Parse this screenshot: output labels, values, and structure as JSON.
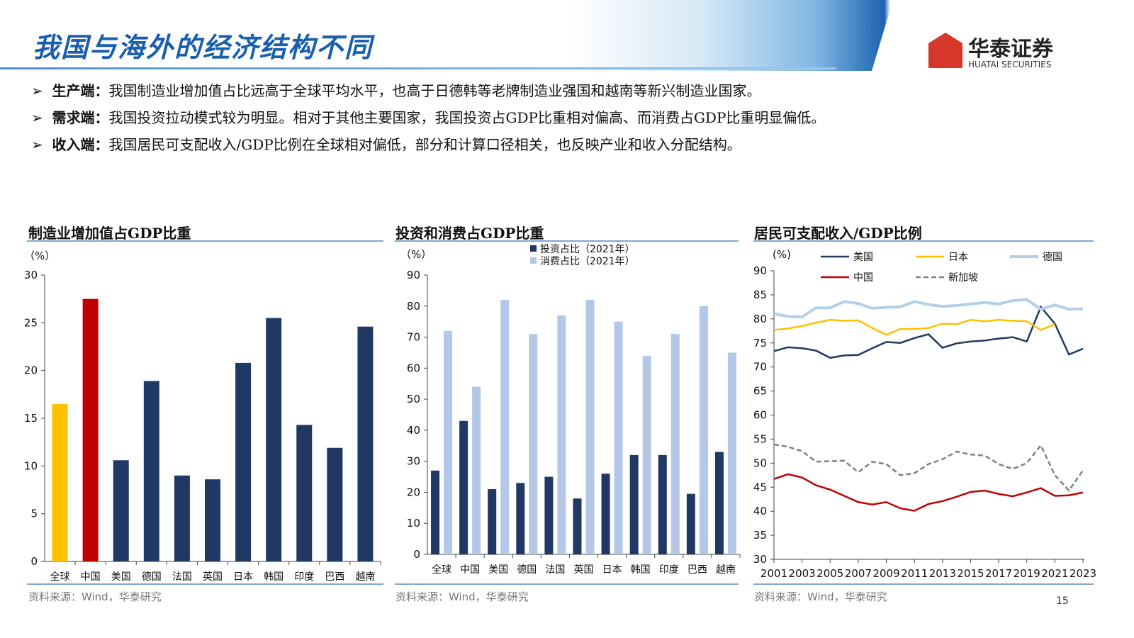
{
  "header": {
    "title": "我国与海外的经济结构不同",
    "logo_cn": "华泰证券",
    "logo_en": "HUATAI SECURITIES"
  },
  "bullets": [
    {
      "label": "生产端：",
      "text": "我国制造业增加值占比远高于全球平均水平，也高于日德韩等老牌制造业强国和越南等新兴制造业国家。"
    },
    {
      "label": "需求端：",
      "text": "我国投资拉动模式较为明显。相对于其他主要国家，我国投资占GDP比重相对偏高、而消费占GDP比重明显偏低。"
    },
    {
      "label": "收入端：",
      "text": "我国居民可支配收入/GDP比例在全球相对偏低，部分和计算口径相关，也反映产业和收入分配结构。"
    }
  ],
  "page_number": "15",
  "colors": {
    "navy": "#1f3864",
    "red": "#c00000",
    "yellow": "#ffc000",
    "lightblue": "#b4c7e7",
    "gray": "#808080"
  },
  "chart_data": [
    {
      "type": "bar",
      "title": "制造业增加值占GDP比重",
      "ylabel": "（%）",
      "ylim": [
        0,
        30
      ],
      "yticks": [
        0,
        5,
        10,
        15,
        20,
        25,
        30
      ],
      "categories": [
        "全球",
        "中国",
        "美国",
        "德国",
        "法国",
        "英国",
        "日本",
        "韩国",
        "印度",
        "巴西",
        "越南"
      ],
      "values": [
        16.5,
        27.5,
        10.6,
        18.9,
        9.0,
        8.6,
        20.8,
        25.5,
        14.3,
        11.9,
        24.6
      ],
      "bar_colors": [
        "#ffc000",
        "#c00000",
        "#1f3864",
        "#1f3864",
        "#1f3864",
        "#1f3864",
        "#1f3864",
        "#1f3864",
        "#1f3864",
        "#1f3864",
        "#1f3864"
      ],
      "source": "资料来源：Wind，华泰研究"
    },
    {
      "type": "bar",
      "title": "投资和消费占GDP比重",
      "ylabel": "（%）",
      "ylim": [
        0,
        90
      ],
      "yticks": [
        0,
        10,
        20,
        30,
        40,
        50,
        60,
        70,
        80,
        90
      ],
      "categories": [
        "全球",
        "中国",
        "美国",
        "德国",
        "法国",
        "英国",
        "日本",
        "韩国",
        "印度",
        "巴西",
        "越南"
      ],
      "series": [
        {
          "name": "投资占比（2021年）",
          "color": "#1f3864",
          "values": [
            27,
            43,
            21,
            23,
            25,
            18,
            26,
            32,
            32,
            19.5,
            33
          ]
        },
        {
          "name": "消费占比（2021年）",
          "color": "#b4c7e7",
          "values": [
            72,
            54,
            82,
            71,
            77,
            82,
            75,
            64,
            71,
            80,
            65
          ]
        }
      ],
      "source": "资料来源：Wind，华泰研究"
    },
    {
      "type": "line",
      "title": "居民可支配收入/GDP比例",
      "ylabel": "(%)",
      "ylim": [
        30,
        90
      ],
      "yticks": [
        30,
        35,
        40,
        45,
        50,
        55,
        60,
        65,
        70,
        75,
        80,
        85,
        90
      ],
      "x": [
        2001,
        2002,
        2003,
        2004,
        2005,
        2006,
        2007,
        2008,
        2009,
        2010,
        2011,
        2012,
        2013,
        2014,
        2015,
        2016,
        2017,
        2018,
        2019,
        2020,
        2021,
        2022,
        2023
      ],
      "xticks": [
        "2001",
        "2003",
        "2005",
        "2007",
        "2009",
        "2011",
        "2013",
        "2015",
        "2017",
        "2019",
        "2021",
        "2023"
      ],
      "series": [
        {
          "name": "美国",
          "color": "#1f3864",
          "dash": false,
          "values": [
            73.3,
            74.1,
            73.9,
            73.4,
            71.9,
            72.4,
            72.5,
            73.9,
            75.2,
            75.0,
            76.0,
            76.8,
            74.0,
            74.9,
            75.3,
            75.5,
            75.9,
            76.2,
            75.3,
            82.5,
            79.0,
            72.6,
            73.8
          ]
        },
        {
          "name": "日本",
          "color": "#ffc000",
          "dash": false,
          "values": [
            77.7,
            78.0,
            78.5,
            79.2,
            79.8,
            79.6,
            79.7,
            78.1,
            76.7,
            77.9,
            77.9,
            78.1,
            79.0,
            78.9,
            79.8,
            79.5,
            79.8,
            79.6,
            79.5,
            77.7,
            78.9,
            null,
            null
          ]
        },
        {
          "name": "德国",
          "color": "#b4cfea",
          "dash": false,
          "values": [
            81.1,
            80.5,
            80.4,
            82.3,
            82.3,
            83.6,
            83.2,
            82.2,
            82.4,
            82.5,
            83.6,
            83.0,
            82.6,
            82.8,
            83.1,
            83.4,
            83.1,
            83.8,
            84.0,
            82.0,
            82.9,
            82.0,
            82.1
          ]
        },
        {
          "name": "中国",
          "color": "#c00000",
          "dash": false,
          "values": [
            46.7,
            47.7,
            47.0,
            45.4,
            44.5,
            43.2,
            41.9,
            41.4,
            41.9,
            40.6,
            40.1,
            41.5,
            42.1,
            43.0,
            44.0,
            44.3,
            43.6,
            43.1,
            43.9,
            44.8,
            43.2,
            43.3,
            43.9
          ]
        },
        {
          "name": "新加坡",
          "color": "#808080",
          "dash": true,
          "values": [
            53.9,
            53.4,
            52.5,
            50.3,
            50.4,
            50.5,
            48.1,
            50.3,
            49.8,
            47.5,
            47.9,
            49.8,
            50.8,
            52.4,
            51.8,
            51.6,
            49.8,
            48.8,
            50.0,
            53.7,
            47.5,
            44.3,
            48.5
          ]
        }
      ],
      "source": "资料来源：Wind，华泰研究"
    }
  ]
}
